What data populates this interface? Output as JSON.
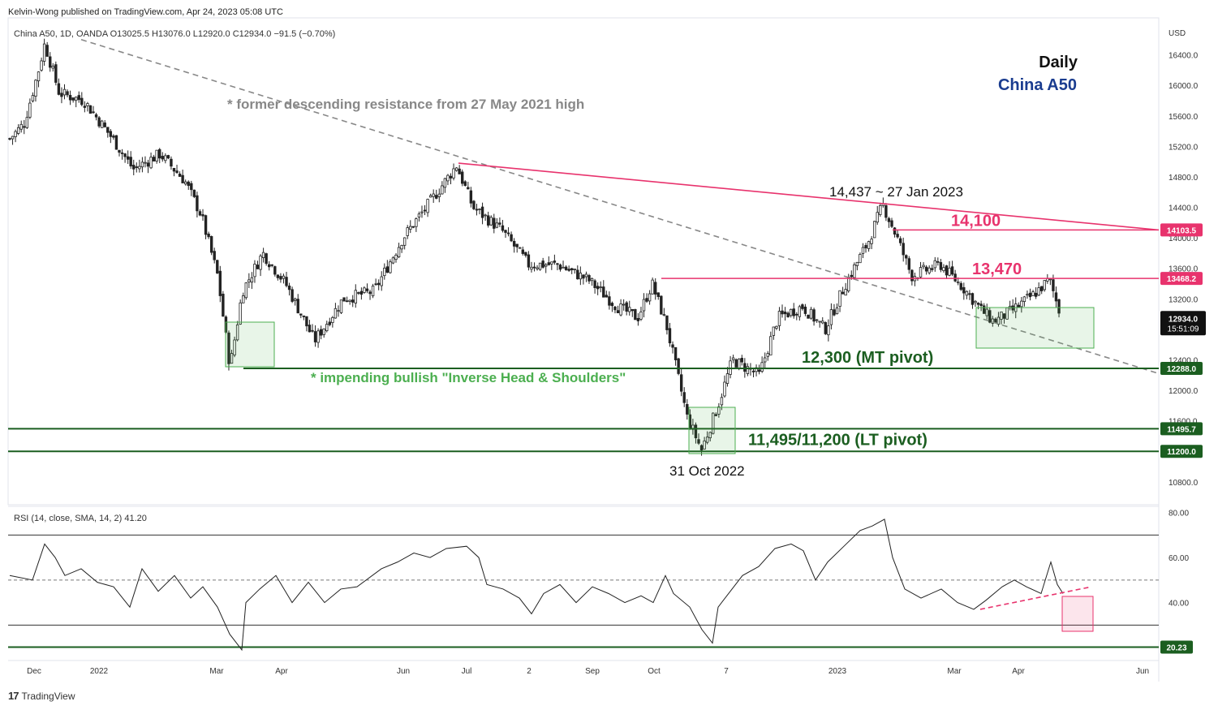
{
  "header": {
    "published": "Kelvin-Wong published on TradingView.com, Apr 24, 2023 05:08 UTC"
  },
  "legend": {
    "main": "China A50, 1D, OANDA  O13025.5  H13076.0  L12920.0  C12934.0  −91.5 (−0.70%)",
    "rsi": "RSI (14, close, SMA, 14, 2)  41.20"
  },
  "footer": {
    "logo": "17",
    "brand": "TradingView"
  },
  "colors": {
    "up": "#222222",
    "down": "#222222",
    "resistance": "#e8336d",
    "support": "#1b5e20",
    "trend": "#888888",
    "zone": "#4caf50",
    "rsiZone": "#e8336d",
    "title_blue": "#1a3c8f"
  },
  "chart_data": {
    "type": "candlestick",
    "currency": "USD",
    "title_right": {
      "line1": "Daily",
      "line2": "China A50"
    },
    "ylim": [
      10500,
      16800
    ],
    "price_ticks": [
      "16400.0",
      "16000.0",
      "15600.0",
      "15200.0",
      "14800.0",
      "14400.0",
      "14000.0",
      "13600.0",
      "13200.0",
      "12800.0",
      "12400.0",
      "12000.0",
      "11600.0",
      "11200.0",
      "10800.0"
    ],
    "time_ticks": [
      "Dec",
      "2022",
      "Mar",
      "Apr",
      "Jun",
      "Jul",
      "2",
      "Sep",
      "Oct",
      "7",
      "2023",
      "Mar",
      "Apr",
      "Jun"
    ],
    "close_path": [
      {
        "d": "2021-11-29",
        "c": 15300
      },
      {
        "d": "2021-12-06",
        "c": 15500
      },
      {
        "d": "2021-12-13",
        "c": 16200
      },
      {
        "d": "2021-12-16",
        "c": 16550
      },
      {
        "d": "2021-12-23",
        "c": 15900
      },
      {
        "d": "2022-01-04",
        "c": 15800
      },
      {
        "d": "2022-01-18",
        "c": 15300
      },
      {
        "d": "2022-01-28",
        "c": 14900
      },
      {
        "d": "2022-02-10",
        "c": 15100
      },
      {
        "d": "2022-02-22",
        "c": 14750
      },
      {
        "d": "2022-03-02",
        "c": 14300
      },
      {
        "d": "2022-03-10",
        "c": 13500
      },
      {
        "d": "2022-03-16",
        "c": 12300
      },
      {
        "d": "2022-03-22",
        "c": 13300
      },
      {
        "d": "2022-04-01",
        "c": 13800
      },
      {
        "d": "2022-04-12",
        "c": 13400
      },
      {
        "d": "2022-04-26",
        "c": 12650
      },
      {
        "d": "2022-05-10",
        "c": 13200
      },
      {
        "d": "2022-05-25",
        "c": 13300
      },
      {
        "d": "2022-06-08",
        "c": 14000
      },
      {
        "d": "2022-06-22",
        "c": 14500
      },
      {
        "d": "2022-07-04",
        "c": 14950
      },
      {
        "d": "2022-07-12",
        "c": 14400
      },
      {
        "d": "2022-07-26",
        "c": 14100
      },
      {
        "d": "2022-08-08",
        "c": 13650
      },
      {
        "d": "2022-08-22",
        "c": 13650
      },
      {
        "d": "2022-09-06",
        "c": 13450
      },
      {
        "d": "2022-09-20",
        "c": 13100
      },
      {
        "d": "2022-09-30",
        "c": 12950
      },
      {
        "d": "2022-10-07",
        "c": 13400
      },
      {
        "d": "2022-10-14",
        "c": 12850
      },
      {
        "d": "2022-10-24",
        "c": 11650
      },
      {
        "d": "2022-10-31",
        "c": 11220
      },
      {
        "d": "2022-11-08",
        "c": 11800
      },
      {
        "d": "2022-11-15",
        "c": 12400
      },
      {
        "d": "2022-11-28",
        "c": 12200
      },
      {
        "d": "2022-12-07",
        "c": 12950
      },
      {
        "d": "2022-12-19",
        "c": 13100
      },
      {
        "d": "2022-12-30",
        "c": 12800
      },
      {
        "d": "2023-01-09",
        "c": 13400
      },
      {
        "d": "2023-01-20",
        "c": 13950
      },
      {
        "d": "2023-01-27",
        "c": 14437
      },
      {
        "d": "2023-02-03",
        "c": 14000
      },
      {
        "d": "2023-02-10",
        "c": 13500
      },
      {
        "d": "2023-02-24",
        "c": 13650
      },
      {
        "d": "2023-03-07",
        "c": 13350
      },
      {
        "d": "2023-03-16",
        "c": 13050
      },
      {
        "d": "2023-03-22",
        "c": 12900
      },
      {
        "d": "2023-03-31",
        "c": 13050
      },
      {
        "d": "2023-04-10",
        "c": 13250
      },
      {
        "d": "2023-04-18",
        "c": 13450
      },
      {
        "d": "2023-04-24",
        "c": 12934
      }
    ],
    "levels": [
      {
        "name": "resistance-14100",
        "value": 14103.5,
        "label": "14,100",
        "tag": "14103.5",
        "color": "#e8336d"
      },
      {
        "name": "resistance-13470",
        "value": 13468.2,
        "label": "13,470",
        "tag": "13468.2",
        "color": "#e8336d"
      },
      {
        "name": "support-12300",
        "value": 12288.0,
        "label": "12,300 (MT pivot)",
        "tag": "12288.0",
        "color": "#1b5e20"
      },
      {
        "name": "support-11495",
        "value": 11495.7,
        "label": "11,495/11,200 (LT pivot)",
        "tag": "11495.7",
        "color": "#1b5e20"
      },
      {
        "name": "support-11200",
        "value": 11200.0,
        "label": "",
        "tag": "11200.0",
        "color": "#1b5e20"
      }
    ],
    "last_price": {
      "value": 12934.0,
      "tag": "12934.0",
      "countdown": "15:51:09"
    },
    "annotations": {
      "desc_resistance": "* former descending resistance from 27 May 2021 high",
      "ihs": "* impending bullish \"Inverse Head & Shoulders\"",
      "peak": "14,437 ~ 27 Jan 2023",
      "trough": "31 Oct 2022"
    },
    "rsi": {
      "params": "RSI (14, close, SMA, 14, 2)",
      "value": 41.2,
      "ylim": [
        15,
        82
      ],
      "ticks": [
        "80.00",
        "60.00",
        "40.00"
      ],
      "levels": [
        70,
        50,
        30,
        20.23
      ],
      "last_tag": "20.23"
    }
  }
}
